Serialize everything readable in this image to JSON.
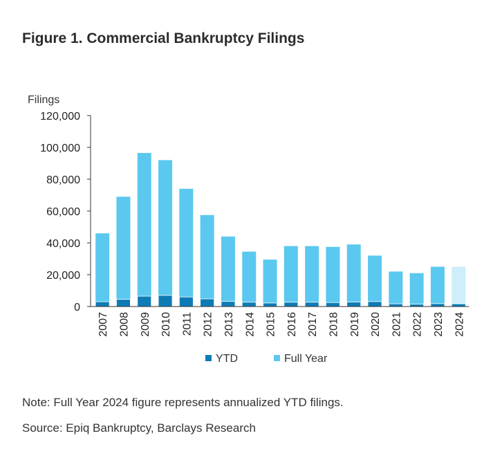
{
  "figure": {
    "title": "Figure 1. Commercial Bankruptcy Filings",
    "note": "Note: Full Year 2024 figure represents annualized YTD filings.",
    "source": "Source: Epiq Bankruptcy, Barclays Research"
  },
  "chart_data": {
    "type": "bar",
    "title": "Figure 1. Commercial Bankruptcy Filings",
    "xlabel": "",
    "ylabel": "Filings",
    "ylim": [
      0,
      120000
    ],
    "yticks": [
      0,
      20000,
      40000,
      60000,
      80000,
      100000,
      120000
    ],
    "ytick_labels": [
      "0",
      "20,000",
      "40,000",
      "60,000",
      "80,000",
      "100,000",
      "120,000"
    ],
    "categories": [
      "2007",
      "2008",
      "2009",
      "2010",
      "2011",
      "2012",
      "2013",
      "2014",
      "2015",
      "2016",
      "2017",
      "2018",
      "2019",
      "2020",
      "2021",
      "2022",
      "2023",
      "2024"
    ],
    "series": [
      {
        "name": "Full Year",
        "color": "#5bc8ef",
        "values": [
          46000,
          69000,
          96500,
          92000,
          74000,
          57500,
          44000,
          34500,
          29500,
          38000,
          38000,
          37500,
          39000,
          32000,
          22000,
          21000,
          25000,
          25000
        ]
      },
      {
        "name": "YTD",
        "color": "#0e7bb5",
        "values": [
          3000,
          4500,
          6500,
          7000,
          6000,
          4800,
          3200,
          2700,
          2200,
          2700,
          2700,
          2500,
          2800,
          3100,
          1700,
          1500,
          1800,
          1700
        ]
      }
    ],
    "highlight_color_2024": "#cdeefa",
    "grid": false,
    "legend": {
      "position": "bottom",
      "items": [
        {
          "label": "YTD",
          "color": "#0e7bb5"
        },
        {
          "label": "Full Year",
          "color": "#5bc8ef"
        }
      ]
    }
  }
}
